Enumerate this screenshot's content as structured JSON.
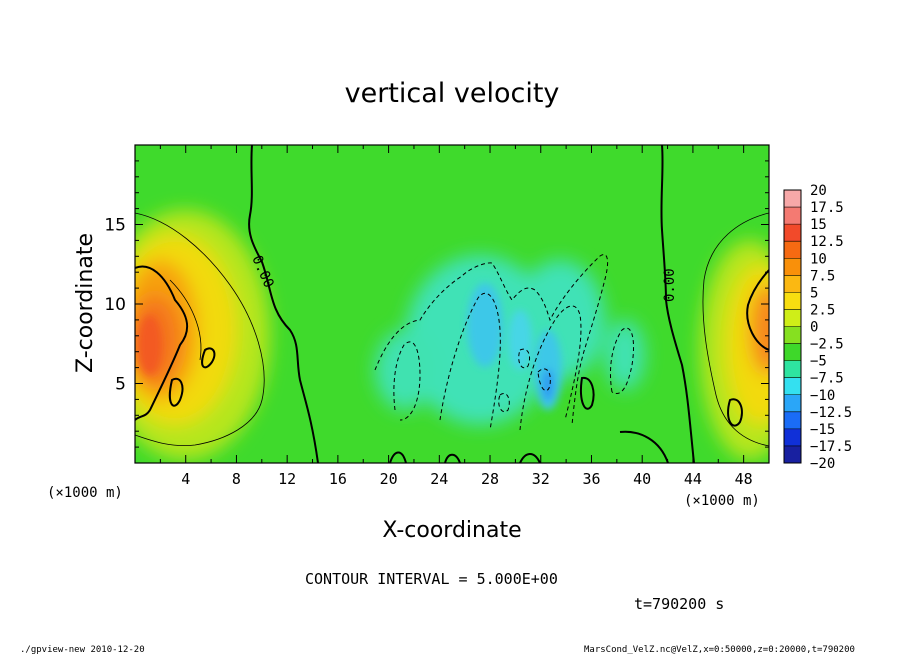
{
  "chart_data": {
    "type": "heatmap",
    "title": "vertical velocity",
    "xlabel": "X-coordinate",
    "ylabel": "Z-coordinate",
    "x_unit_left": "(×1000 m)",
    "x_unit_right": "(×1000 m)",
    "xlim": [
      0,
      50
    ],
    "ylim": [
      0,
      20
    ],
    "x_ticks": [
      4,
      8,
      12,
      16,
      20,
      24,
      28,
      32,
      36,
      40,
      44,
      48
    ],
    "y_ticks": [
      5,
      10,
      15
    ],
    "colorbar": {
      "min": -20,
      "max": 20,
      "step": 2.5,
      "labels": [
        "20",
        "17.5",
        "15",
        "12.5",
        "10",
        "7.5",
        "5",
        "2.5",
        "0",
        "−2.5",
        "−5",
        "−7.5",
        "−10",
        "−12.5",
        "−15",
        "−17.5",
        "−20"
      ],
      "colors": [
        "#f7a8a8",
        "#f47a72",
        "#f24a2a",
        "#f66a12",
        "#f9900a",
        "#fbb812",
        "#f8de10",
        "#cfee18",
        "#86e020",
        "#3ed82a",
        "#2ee4a0",
        "#34e0f0",
        "#2aa6f8",
        "#1a6cf6",
        "#1030d8",
        "#1820a0",
        "#6a18b8"
      ]
    },
    "contour_interval": "CONTOUR INTERVAL = 5.000E+00",
    "contour_labels": [
      "0.00",
      "0.00"
    ],
    "grid": false
  },
  "footer": {
    "time": "t=790200 s",
    "program": "./gpview-new  2010-12-20",
    "source": "MarsCond_VelZ.nc@VelZ,x=0:50000,z=0:20000,t=790200"
  }
}
